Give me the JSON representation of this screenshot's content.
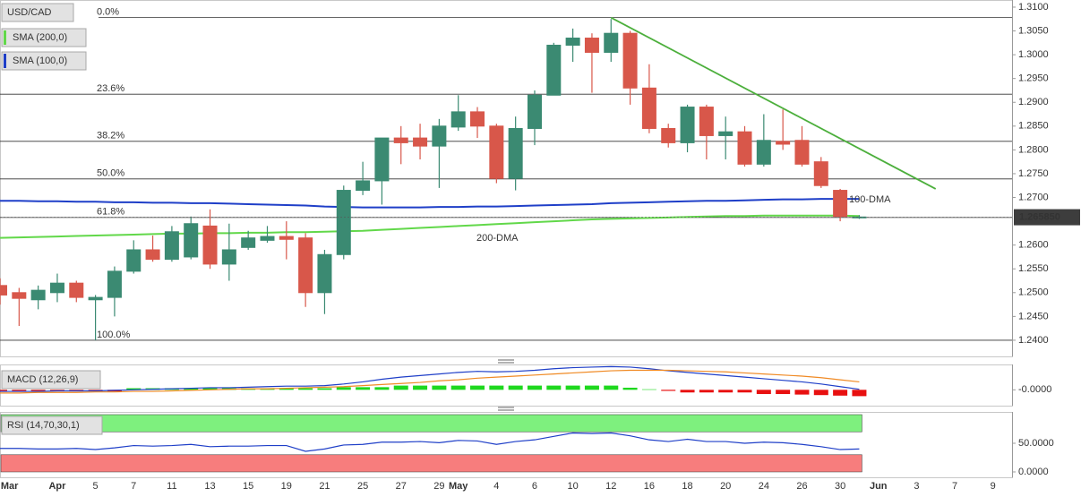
{
  "chart_data": [
    {
      "type": "candlestick",
      "symbol": "USD/CAD",
      "up_color": "#3b8a72",
      "down_color": "#d8574a",
      "xlim": [
        0,
        53
      ],
      "ylim": [
        1.2366,
        1.3115
      ],
      "yticks": [
        {
          "value": 1.31,
          "label": "1.3100"
        },
        {
          "value": 1.305,
          "label": "1.3050"
        },
        {
          "value": 1.3,
          "label": "1.3000"
        },
        {
          "value": 1.295,
          "label": "1.2950"
        },
        {
          "value": 1.29,
          "label": "1.2900"
        },
        {
          "value": 1.285,
          "label": "1.2850"
        },
        {
          "value": 1.28,
          "label": "1.2800"
        },
        {
          "value": 1.275,
          "label": "1.2750"
        },
        {
          "value": 1.27,
          "label": "1.2700"
        },
        {
          "value": 1.26,
          "label": "1.2600"
        },
        {
          "value": 1.255,
          "label": "1.2550"
        },
        {
          "value": 1.25,
          "label": "1.2500"
        },
        {
          "value": 1.245,
          "label": "1.2450"
        },
        {
          "value": 1.24,
          "label": "1.2400"
        }
      ],
      "candles": {
        "open": [
          1.2515,
          1.25,
          1.2485,
          1.25,
          1.252,
          1.2485,
          1.249,
          1.2545,
          1.259,
          1.257,
          1.2575,
          1.264,
          1.256,
          1.2595,
          1.261,
          1.2618,
          1.2615,
          1.25,
          1.258,
          1.2715,
          1.2735,
          1.2825,
          1.2825,
          1.2808,
          1.2848,
          1.288,
          1.285,
          1.274,
          1.2845,
          1.2915,
          1.302,
          1.3035,
          1.3005,
          1.3045,
          1.293,
          1.2845,
          1.2815,
          1.289,
          1.283,
          1.2838,
          1.277,
          1.2818,
          1.282,
          1.2775,
          1.2715,
          1.2658
        ],
        "high": [
          1.253,
          1.251,
          1.2515,
          1.254,
          1.2525,
          1.2495,
          1.2555,
          1.261,
          1.262,
          1.264,
          1.266,
          1.2675,
          1.2645,
          1.263,
          1.264,
          1.265,
          1.2625,
          1.259,
          1.2725,
          1.2775,
          1.2825,
          1.285,
          1.2855,
          1.2865,
          1.2915,
          1.289,
          1.2855,
          1.287,
          1.2925,
          1.3025,
          1.3055,
          1.3045,
          1.3075,
          1.305,
          1.298,
          1.2855,
          1.2895,
          1.2895,
          1.287,
          1.285,
          1.2875,
          1.2885,
          1.285,
          1.2785,
          1.2718,
          1.2663
        ],
        "low": [
          1.2475,
          1.243,
          1.2465,
          1.248,
          1.248,
          1.24,
          1.245,
          1.254,
          1.2565,
          1.2565,
          1.257,
          1.255,
          1.2525,
          1.259,
          1.2605,
          1.257,
          1.247,
          1.2455,
          1.257,
          1.2705,
          1.2685,
          1.277,
          1.278,
          1.272,
          1.284,
          1.2825,
          1.273,
          1.2715,
          1.281,
          1.2915,
          1.2985,
          1.292,
          1.2985,
          1.2895,
          1.2835,
          1.2805,
          1.2795,
          1.278,
          1.278,
          1.2765,
          1.2765,
          1.28,
          1.2765,
          1.272,
          1.265,
          1.2655
        ],
        "close": [
          1.2495,
          1.2488,
          1.2505,
          1.252,
          1.249,
          1.249,
          1.2545,
          1.259,
          1.257,
          1.2628,
          1.2645,
          1.256,
          1.259,
          1.2615,
          1.2618,
          1.2612,
          1.25,
          1.258,
          1.2715,
          1.2735,
          1.2825,
          1.2815,
          1.2808,
          1.285,
          1.288,
          1.285,
          1.274,
          1.2845,
          1.2915,
          1.302,
          1.3035,
          1.3005,
          1.3045,
          1.293,
          1.2845,
          1.2815,
          1.289,
          1.283,
          1.2838,
          1.277,
          1.282,
          1.2812,
          1.277,
          1.2725,
          1.266,
          1.2659
        ]
      },
      "series": [
        {
          "name": "SMA (200,0)",
          "color": "#62d84a",
          "values": [
            1.2615,
            1.2616,
            1.2617,
            1.2618,
            1.2619,
            1.262,
            1.2621,
            1.2622,
            1.2623,
            1.2624,
            1.2624,
            1.2625,
            1.2625,
            1.2626,
            1.2626,
            1.2627,
            1.2627,
            1.2628,
            1.2629,
            1.263,
            1.2632,
            1.2634,
            1.2636,
            1.2638,
            1.264,
            1.2642,
            1.2644,
            1.2646,
            1.2648,
            1.265,
            1.2652,
            1.2654,
            1.2655,
            1.2656,
            1.2657,
            1.2658,
            1.2659,
            1.266,
            1.2661,
            1.2661,
            1.2662,
            1.2662,
            1.2662,
            1.2662,
            1.2662,
            1.2661
          ]
        },
        {
          "name": "SMA (100,0)",
          "color": "#1f3fc8",
          "values": [
            1.2693,
            1.2693,
            1.2692,
            1.2692,
            1.2691,
            1.2691,
            1.269,
            1.269,
            1.2689,
            1.2689,
            1.2688,
            1.2688,
            1.2687,
            1.2686,
            1.2685,
            1.2684,
            1.2683,
            1.2681,
            1.268,
            1.2679,
            1.2679,
            1.2679,
            1.2679,
            1.268,
            1.268,
            1.2681,
            1.2681,
            1.2682,
            1.2683,
            1.2684,
            1.2685,
            1.2686,
            1.2688,
            1.2689,
            1.269,
            1.2691,
            1.2692,
            1.2693,
            1.2693,
            1.2694,
            1.2695,
            1.2696,
            1.2696,
            1.2697,
            1.2697,
            1.2697
          ]
        }
      ],
      "annotations": [
        {
          "text": "100-DMA",
          "color": "#7a5ccc"
        },
        {
          "text": "200-DMA",
          "color": "#62d84a"
        }
      ],
      "fib_levels": [
        {
          "label": "0.0%",
          "value": 1.3078
        },
        {
          "label": "23.6%",
          "value": 1.2917
        },
        {
          "label": "38.2%",
          "value": 1.2818
        },
        {
          "label": "50.0%",
          "value": 1.2739
        },
        {
          "label": "61.8%",
          "value": 1.2658
        },
        {
          "label": "100.0%",
          "value": 1.24
        }
      ],
      "trend_line": {
        "color": "#4caf3c",
        "x": [
          32,
          49
        ],
        "y": [
          1.3078,
          1.2718
        ]
      },
      "last_price": {
        "value": 1.26585,
        "label": "1.265850"
      }
    },
    {
      "type": "macd",
      "label": "MACD (12,26,9)",
      "xlim": [
        0,
        53
      ],
      "ylim": [
        -0.003,
        0.0048
      ],
      "yticks": [
        {
          "value": 0,
          "label": "-0.0000"
        }
      ],
      "histogram": {
        "up_color": "#1ed81e",
        "down_color": "#e81010",
        "values": [
          -0.0003,
          -0.0003,
          -0.0003,
          -0.0003,
          -0.0003,
          -0.0003,
          -0.0003,
          0.0003,
          0.0003,
          0.0003,
          0.0003,
          0.0003,
          0.0003,
          0.0003,
          0.0003,
          0.0003,
          0.0003,
          0.0003,
          0.0005,
          0.0005,
          0.0005,
          0.0008,
          0.0008,
          0.0008,
          0.0008,
          0.0008,
          0.0008,
          0.0008,
          0.0008,
          0.0008,
          0.0008,
          0.0008,
          0.0008,
          0.0004,
          0.0001,
          -0.0002,
          -0.0005,
          -0.0005,
          -0.0005,
          -0.0005,
          -0.0008,
          -0.0008,
          -0.0009,
          -0.001,
          -0.0011,
          -0.0012
        ]
      },
      "series": [
        {
          "color": "#1f3fc8",
          "values": [
            -0.0003,
            -0.0003,
            -0.0003,
            -0.0002,
            -0.0002,
            -0.0002,
            -0.0001,
            0.0,
            0.0001,
            0.0002,
            0.0003,
            0.0004,
            0.0004,
            0.0005,
            0.0006,
            0.0007,
            0.0007,
            0.0008,
            0.0011,
            0.0015,
            0.002,
            0.0024,
            0.0027,
            0.003,
            0.0033,
            0.0035,
            0.0034,
            0.0035,
            0.0037,
            0.004,
            0.0042,
            0.0043,
            0.0044,
            0.0043,
            0.004,
            0.0036,
            0.0033,
            0.003,
            0.0027,
            0.0024,
            0.0021,
            0.0018,
            0.0015,
            0.0011,
            0.0006,
            0.0001
          ]
        },
        {
          "color": "#f08a24",
          "values": [
            -0.0006,
            -0.0006,
            -0.0005,
            -0.0005,
            -0.0005,
            -0.0004,
            -0.0004,
            -0.0003,
            -0.0003,
            -0.0002,
            -0.0001,
            0.0,
            0.0001,
            0.0002,
            0.0002,
            0.0003,
            0.0004,
            0.0005,
            0.0006,
            0.0008,
            0.001,
            0.0012,
            0.0014,
            0.0017,
            0.0019,
            0.0022,
            0.0024,
            0.0026,
            0.0028,
            0.003,
            0.0032,
            0.0034,
            0.0036,
            0.0037,
            0.0037,
            0.0037,
            0.0036,
            0.0035,
            0.0034,
            0.0032,
            0.003,
            0.0028,
            0.0026,
            0.0023,
            0.0019,
            0.0015
          ]
        }
      ]
    },
    {
      "type": "rsi",
      "label": "RSI (14,70,30,1)",
      "xlim": [
        0,
        53
      ],
      "ylim": [
        -9.4,
        104.7
      ],
      "yticks": [
        {
          "value": 50,
          "label": "50.0000"
        },
        {
          "value": 0,
          "label": "0.0000"
        }
      ],
      "bands": [
        {
          "range": [
            70,
            100
          ],
          "color": "#7ef07e"
        },
        {
          "range": [
            0,
            30
          ],
          "color": "#f77d7d"
        }
      ],
      "series": [
        {
          "color": "#1f3fc8",
          "values": [
            41,
            41,
            40,
            40,
            41,
            39,
            42,
            46,
            45,
            46,
            48,
            44,
            45,
            45,
            46,
            46,
            36,
            40,
            47,
            48,
            52,
            52,
            53,
            51,
            55,
            54,
            48,
            53,
            56,
            62,
            68,
            67,
            68,
            63,
            56,
            53,
            57,
            53,
            53,
            50,
            52,
            51,
            48,
            44,
            39,
            40
          ]
        }
      ],
      "xticks": [
        {
          "value": 0.5,
          "label": "Mar"
        },
        {
          "value": 3,
          "label": "Apr"
        },
        {
          "value": 5,
          "label": "5"
        },
        {
          "value": 7,
          "label": "7"
        },
        {
          "value": 9,
          "label": "11"
        },
        {
          "value": 11,
          "label": "13"
        },
        {
          "value": 13,
          "label": "15"
        },
        {
          "value": 15,
          "label": "19"
        },
        {
          "value": 17,
          "label": "21"
        },
        {
          "value": 19,
          "label": "25"
        },
        {
          "value": 21,
          "label": "27"
        },
        {
          "value": 23,
          "label": "29"
        },
        {
          "value": 24,
          "label": "May"
        },
        {
          "value": 26,
          "label": "4"
        },
        {
          "value": 28,
          "label": "6"
        },
        {
          "value": 30,
          "label": "10"
        },
        {
          "value": 32,
          "label": "12"
        },
        {
          "value": 34,
          "label": "16"
        },
        {
          "value": 36,
          "label": "18"
        },
        {
          "value": 38,
          "label": "20"
        },
        {
          "value": 40,
          "label": "24"
        },
        {
          "value": 42,
          "label": "26"
        },
        {
          "value": 44,
          "label": "30"
        },
        {
          "value": 46,
          "label": "Jun"
        },
        {
          "value": 48,
          "label": "3"
        },
        {
          "value": 50,
          "label": "7"
        },
        {
          "value": 52,
          "label": "9"
        }
      ]
    }
  ]
}
